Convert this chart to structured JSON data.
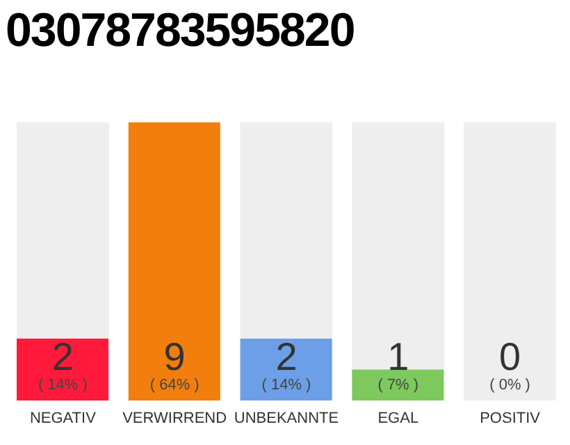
{
  "chart_data": {
    "type": "bar",
    "title": "03078783595820",
    "categories": [
      "NEGATIV",
      "VERWIRREND",
      "UNBEKANNTE",
      "EGAL",
      "POSITIV"
    ],
    "values": [
      2,
      9,
      2,
      1,
      0
    ],
    "colors": [
      "#ff1a3c",
      "#f27e0d",
      "#6c9fe8",
      "#7dc95e",
      "#cccccc"
    ],
    "data_labels": true,
    "annotations": [
      "( 14% )",
      "( 64% )",
      "( 14% )",
      "( 7% )",
      "( 0% )"
    ],
    "bands": [
      {
        "axis": "x",
        "from": "NEGATIV",
        "to": "NEGATIV",
        "color": "#eeeeee"
      },
      {
        "axis": "x",
        "from": "UNBEKANNTE",
        "to": "UNBEKANNTE",
        "color": "#eeeeee"
      },
      {
        "axis": "x",
        "from": "EGAL",
        "to": "EGAL",
        "color": "#eeeeee"
      },
      {
        "axis": "x",
        "from": "POSITIV",
        "to": "POSITIV",
        "color": "#eeeeee"
      }
    ],
    "tick_labels": "x",
    "grid": false,
    "legend": false
  }
}
